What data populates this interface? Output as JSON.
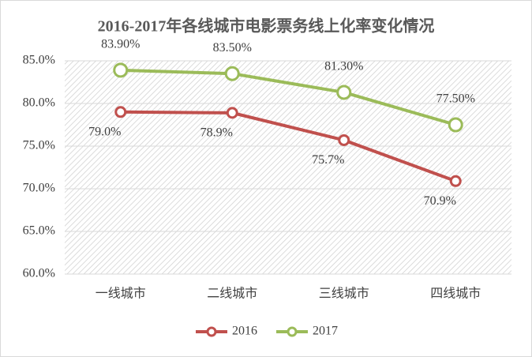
{
  "chart_data": {
    "type": "line",
    "title": "2016-2017年各线城市电影票务线上化率变化情况",
    "categories": [
      "一线城市",
      "二线城市",
      "三线城市",
      "四线城市"
    ],
    "series": [
      {
        "name": "2016",
        "color": "#c0504d",
        "values": [
          79.0,
          78.9,
          75.7,
          70.9
        ],
        "value_labels": [
          "79.0%",
          "78.9%",
          "75.7%",
          "70.9%"
        ]
      },
      {
        "name": "2017",
        "color": "#9bbb59",
        "values": [
          83.9,
          83.5,
          81.3,
          77.5
        ],
        "value_labels": [
          "83.90%",
          "83.50%",
          "81.30%",
          "77.50%"
        ]
      }
    ],
    "ylim": [
      60,
      85
    ],
    "yticks": [
      {
        "value": 60,
        "label": "60.0%"
      },
      {
        "value": 65,
        "label": "65.0%"
      },
      {
        "value": 70,
        "label": "70.0%"
      },
      {
        "value": 75,
        "label": "75.0%"
      },
      {
        "value": 80,
        "label": "80.0%"
      },
      {
        "value": 85,
        "label": "85.0%"
      }
    ],
    "grid": true,
    "legend": "bottom"
  }
}
